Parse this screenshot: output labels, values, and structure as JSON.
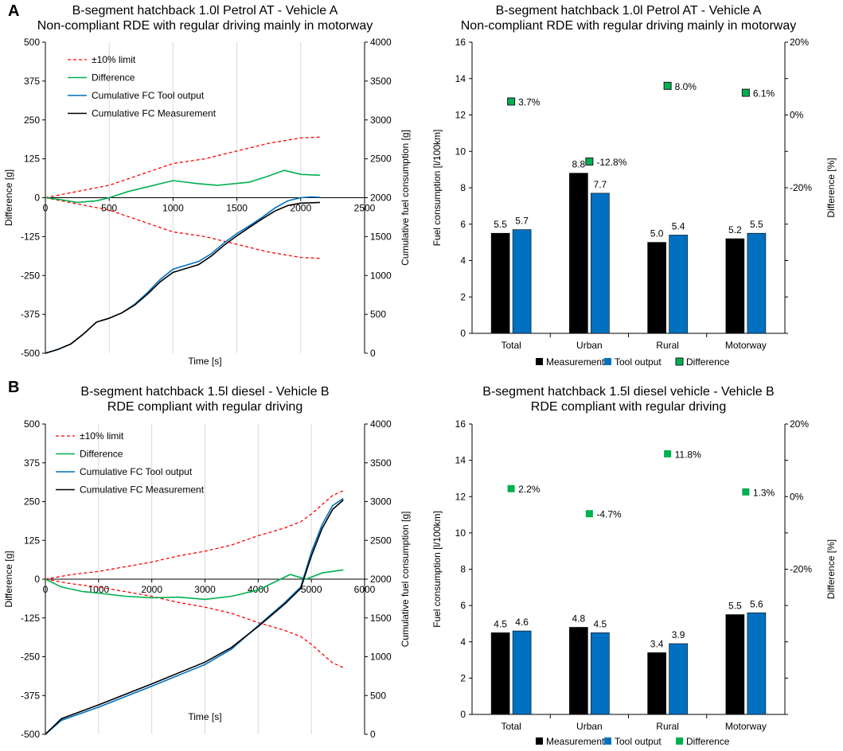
{
  "panels": [
    "A",
    "B"
  ],
  "chart_data": [
    {
      "type": "line",
      "title": [
        "B-segment hatchback 1.0l Petrol AT  - Vehicle A",
        "Non-compliant RDE with regular driving mainly in motorway"
      ],
      "xlabel": "Time [s]",
      "ylabel": "Difference [g]",
      "y2label": "Cumulative fuel consumption [g]",
      "xlim": [
        0,
        2500
      ],
      "xticks": [
        0,
        500,
        1000,
        1500,
        2000,
        2500
      ],
      "ylim": [
        -500,
        500
      ],
      "yticks": [
        500,
        375,
        250,
        125,
        0,
        -125,
        -250,
        -375,
        -500
      ],
      "y2lim": [
        0,
        4000
      ],
      "y2ticks": [
        4000,
        3500,
        3000,
        2500,
        2000,
        1500,
        1000,
        500,
        0
      ],
      "legend_position": "top-left",
      "series": [
        {
          "name": "±10% limit",
          "axis": "left",
          "color": "#ff0000",
          "dash": true,
          "x": [
            0,
            250,
            500,
            750,
            1000,
            1250,
            1500,
            1750,
            2000,
            2150
          ],
          "y": [
            0,
            20,
            40,
            75,
            110,
            125,
            150,
            175,
            192,
            195
          ]
        },
        {
          "name": "±10% limit",
          "axis": "left",
          "color": "#ff0000",
          "dash": true,
          "hide_legend": true,
          "x": [
            0,
            250,
            500,
            750,
            1000,
            1250,
            1500,
            1750,
            2000,
            2150
          ],
          "y": [
            0,
            -20,
            -40,
            -75,
            -110,
            -125,
            -150,
            -175,
            -192,
            -195
          ]
        },
        {
          "name": "Difference",
          "axis": "left",
          "color": "#00b050",
          "x": [
            0,
            100,
            250,
            400,
            500,
            650,
            800,
            1000,
            1200,
            1350,
            1600,
            1750,
            1870,
            2000,
            2150
          ],
          "y": [
            0,
            -5,
            -15,
            -10,
            0,
            20,
            35,
            55,
            45,
            40,
            50,
            70,
            88,
            75,
            72
          ]
        },
        {
          "name": "Cumulative FC Tool output",
          "axis": "right",
          "color": "#0070c0",
          "x": [
            0,
            100,
            200,
            300,
            400,
            500,
            600,
            700,
            800,
            900,
            1000,
            1100,
            1200,
            1300,
            1400,
            1500,
            1600,
            1700,
            1800,
            1900,
            2000,
            2080,
            2150
          ],
          "y": [
            0,
            50,
            120,
            250,
            400,
            450,
            520,
            630,
            780,
            950,
            1080,
            1130,
            1180,
            1280,
            1420,
            1540,
            1640,
            1750,
            1870,
            1960,
            2000,
            2010,
            2005
          ]
        },
        {
          "name": "Cumulative FC Measurement",
          "axis": "right",
          "color": "#000000",
          "x": [
            0,
            100,
            200,
            300,
            400,
            500,
            600,
            700,
            800,
            900,
            1000,
            1100,
            1200,
            1300,
            1400,
            1500,
            1600,
            1700,
            1800,
            1900,
            2000,
            2080,
            2150
          ],
          "y": [
            0,
            50,
            120,
            250,
            400,
            450,
            520,
            620,
            760,
            920,
            1040,
            1090,
            1140,
            1250,
            1390,
            1510,
            1620,
            1730,
            1830,
            1900,
            1930,
            1935,
            1940
          ]
        }
      ]
    },
    {
      "type": "bar",
      "title": [
        "B-segment hatchback 1.0l Petrol AT  - Vehicle A",
        "Non-compliant RDE with regular driving mainly in motorway"
      ],
      "xlabel": "",
      "ylabel": "Fuel consumption [l/100km]",
      "y2label": "Difference [%]",
      "categories": [
        "Total",
        "Urban",
        "Rural",
        "Motorway"
      ],
      "ylim": [
        0,
        16
      ],
      "yticks": [
        16,
        14,
        12,
        10,
        8,
        6,
        4,
        2,
        0
      ],
      "y2lim": [
        -60,
        20
      ],
      "y2ticks": [
        "20%",
        "0%",
        "-20%"
      ],
      "y2tickvalues": [
        20,
        0,
        -20
      ],
      "legend_position": "bottom",
      "marker_style": "square-outlined",
      "series": [
        {
          "name": "Measurement",
          "color": "#000000",
          "values": [
            5.5,
            8.8,
            5.0,
            5.2
          ],
          "labels": [
            "5.5",
            "8.8",
            "5.0",
            "5.2"
          ]
        },
        {
          "name": "Tool output",
          "color": "#0070c0",
          "values": [
            5.7,
            7.7,
            5.4,
            5.5
          ],
          "labels": [
            "5.7",
            "7.7",
            "5.4",
            "5.5"
          ]
        },
        {
          "name": "Difference",
          "color": "#00b050",
          "type": "marker",
          "values": [
            3.7,
            -12.8,
            8.0,
            6.1
          ],
          "labels": [
            "3.7%",
            "-12.8%",
            "8.0%",
            "6.1%"
          ]
        }
      ]
    },
    {
      "type": "line",
      "title": [
        "B-segment hatchback 1.5l diesel - Vehicle B",
        "RDE compliant with regular driving"
      ],
      "xlabel": "Time [s]",
      "ylabel": "Difference [g]",
      "y2label": "Cumulative fuel consumption [g]",
      "xlim": [
        0,
        6000
      ],
      "xticks": [
        0,
        1000,
        2000,
        3000,
        4000,
        5000,
        6000
      ],
      "ylim": [
        -500,
        500
      ],
      "yticks": [
        500,
        375,
        250,
        125,
        0,
        -125,
        -250,
        -375,
        -500
      ],
      "y2lim": [
        0,
        4000
      ],
      "y2ticks": [
        4000,
        3500,
        3000,
        2500,
        2000,
        1500,
        1000,
        500,
        0
      ],
      "legend_position": "top-left",
      "series": [
        {
          "name": "±10% limit",
          "axis": "left",
          "color": "#ff0000",
          "dash": true,
          "x": [
            0,
            500,
            1000,
            1500,
            2000,
            2500,
            3000,
            3500,
            4000,
            4500,
            4800,
            5000,
            5200,
            5400,
            5600
          ],
          "y": [
            0,
            15,
            25,
            40,
            55,
            75,
            90,
            110,
            140,
            165,
            185,
            210,
            240,
            270,
            285
          ]
        },
        {
          "name": "±10% limit",
          "axis": "left",
          "color": "#ff0000",
          "dash": true,
          "hide_legend": true,
          "x": [
            0,
            500,
            1000,
            1500,
            2000,
            2500,
            3000,
            3500,
            4000,
            4500,
            4800,
            5000,
            5200,
            5400,
            5600
          ],
          "y": [
            0,
            -15,
            -25,
            -40,
            -55,
            -75,
            -90,
            -110,
            -140,
            -165,
            -185,
            -210,
            -240,
            -270,
            -285
          ]
        },
        {
          "name": "Difference",
          "axis": "left",
          "color": "#00b050",
          "x": [
            0,
            300,
            700,
            1000,
            1500,
            2000,
            2500,
            3000,
            3500,
            4000,
            4300,
            4600,
            4900,
            5200,
            5600
          ],
          "y": [
            0,
            -25,
            -40,
            -45,
            -55,
            -60,
            -58,
            -65,
            -55,
            -35,
            -10,
            15,
            0,
            20,
            30
          ]
        },
        {
          "name": "Cumulative FC Tool output",
          "axis": "right",
          "color": "#0070c0",
          "x": [
            0,
            300,
            1000,
            2000,
            3000,
            3500,
            4000,
            4500,
            4800,
            5000,
            5200,
            5400,
            5600
          ],
          "y": [
            0,
            180,
            350,
            620,
            900,
            1100,
            1400,
            1700,
            1900,
            2350,
            2700,
            2950,
            3040
          ]
        },
        {
          "name": "Cumulative FC Measurement",
          "axis": "right",
          "color": "#000000",
          "x": [
            0,
            300,
            1000,
            2000,
            3000,
            3500,
            4000,
            4500,
            4800,
            5000,
            5200,
            5400,
            5600
          ],
          "y": [
            0,
            200,
            380,
            650,
            930,
            1120,
            1390,
            1680,
            1880,
            2300,
            2650,
            2900,
            3020
          ]
        }
      ]
    },
    {
      "type": "bar",
      "title": [
        "B-segment hatchback 1.5l diesel vehicle  - Vehicle B",
        "RDE compliant with regular driving"
      ],
      "xlabel": "",
      "ylabel": "Fuel consumption [l/100km]",
      "y2label": "Difference [%]",
      "categories": [
        "Total",
        "Urban",
        "Rural",
        "Motorway"
      ],
      "ylim": [
        0,
        16
      ],
      "yticks": [
        16,
        14,
        12,
        10,
        8,
        6,
        4,
        2,
        0
      ],
      "y2lim": [
        -60,
        20
      ],
      "y2ticks": [
        "20%",
        "0%",
        "-20%"
      ],
      "y2tickvalues": [
        20,
        0,
        -20
      ],
      "legend_position": "bottom",
      "marker_style": "square",
      "series": [
        {
          "name": "Measurement",
          "color": "#000000",
          "values": [
            4.5,
            4.8,
            3.4,
            5.5
          ],
          "labels": [
            "4.5",
            "4.8",
            "3.4",
            "5.5"
          ]
        },
        {
          "name": "Tool output",
          "color": "#0070c0",
          "values": [
            4.6,
            4.5,
            3.9,
            5.6
          ],
          "labels": [
            "4.6",
            "4.5",
            "3.9",
            "5.6"
          ]
        },
        {
          "name": "Difference",
          "color": "#00b050",
          "type": "marker",
          "values": [
            2.2,
            -4.7,
            11.8,
            1.3
          ],
          "labels": [
            "2.2%",
            "-4.7%",
            "11.8%",
            "1.3%"
          ]
        }
      ]
    }
  ]
}
